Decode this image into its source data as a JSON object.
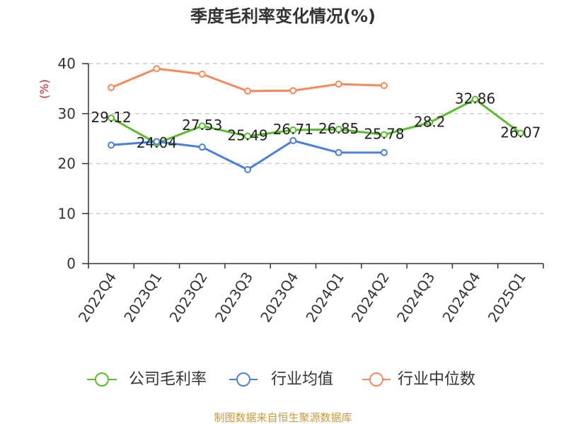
{
  "chart_data": {
    "type": "line",
    "title": "季度毛利率变化情况(%)",
    "ylabel": "(%)",
    "ylabel_color": "#d42020",
    "ylim": [
      0,
      40
    ],
    "yticks": [
      0,
      10,
      20,
      30,
      40
    ],
    "grid": true,
    "legend_position": "bottom",
    "categories": [
      "2022Q4",
      "2023Q1",
      "2023Q2",
      "2023Q3",
      "2023Q4",
      "2024Q1",
      "2024Q2",
      "2024Q3",
      "2024Q4",
      "2025Q1"
    ],
    "series": [
      {
        "name": "公司毛利率",
        "color": "#5bbd2b",
        "show_labels": true,
        "values": [
          29.12,
          24.04,
          27.53,
          25.49,
          26.71,
          26.85,
          25.78,
          28.2,
          32.86,
          26.07
        ]
      },
      {
        "name": "行业均值",
        "color": "#4b7fdc",
        "show_labels": false,
        "values": [
          23.7,
          24.4,
          23.3,
          18.8,
          24.6,
          22.2,
          22.2,
          null,
          null,
          null
        ]
      },
      {
        "name": "行业中位数",
        "color": "#f5895c",
        "show_labels": false,
        "values": [
          35.2,
          39.0,
          37.9,
          34.5,
          34.6,
          35.9,
          35.6,
          null,
          null,
          null
        ]
      }
    ]
  },
  "source": "制图数据来自恒生聚源数据库",
  "source_color": "#c99a3e"
}
